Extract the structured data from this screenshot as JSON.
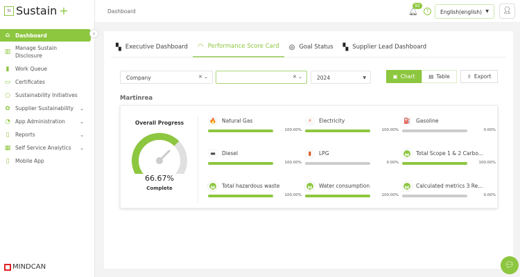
{
  "brand": {
    "name": "Sustain",
    "plus": "+",
    "box": "St",
    "footer": "MINDCAN"
  },
  "sidebar": {
    "items": [
      {
        "label": "Dashboard",
        "icon": "home-icon",
        "active": true
      },
      {
        "label": "Manage Sustain Disclosure",
        "icon": "chart-icon"
      },
      {
        "label": "Work Queue",
        "icon": "bars-icon"
      },
      {
        "label": "Certificates",
        "icon": "certificate-icon"
      },
      {
        "label": "Sustainability Initiatives",
        "icon": "bulb-icon"
      },
      {
        "label": "Supplier Sustainability",
        "icon": "network-icon",
        "expandable": true
      },
      {
        "label": "App Administration",
        "icon": "admin-icon",
        "expandable": true
      },
      {
        "label": "Reports",
        "icon": "report-icon",
        "expandable": true
      },
      {
        "label": "Self Service Analytics",
        "icon": "analytics-icon",
        "expandable": true
      },
      {
        "label": "Mobile App",
        "icon": "mobile-icon"
      }
    ]
  },
  "header": {
    "breadcrumb": "Dashboard",
    "notifications": "92",
    "language": "English(english)"
  },
  "tabs": [
    {
      "label": "Executive Dashboard",
      "icon": "grid-icon"
    },
    {
      "label": "Performance Score Card",
      "icon": "gauge-icon",
      "active": true
    },
    {
      "label": "Goal Status",
      "icon": "target-icon"
    },
    {
      "label": "Supplier Lead Dashboard",
      "icon": "grid-icon"
    }
  ],
  "filters": {
    "company": "Company",
    "second": "",
    "year": "2024"
  },
  "actions": {
    "chart": "Chart",
    "table": "Table",
    "export": "Export"
  },
  "section": "Martinrea",
  "overall": {
    "title": "Overall Progress",
    "value": "66.67%",
    "percent": 66.67,
    "label": "Complete"
  },
  "metrics": [
    {
      "label": "Natural Gas",
      "pct": "100.00%",
      "value": 100,
      "icon": "flame-icon",
      "glyph": "🔥"
    },
    {
      "label": "Electricity",
      "pct": "100.00%",
      "value": 100,
      "icon": "lightning-icon",
      "glyph": "⚡"
    },
    {
      "label": "Gasoline",
      "pct": "0.00%",
      "value": 0,
      "icon": "fuel-icon",
      "glyph": "⛽"
    },
    {
      "label": "Diesel",
      "pct": "100.00%",
      "value": 100,
      "icon": "diesel-icon",
      "glyph": "▬"
    },
    {
      "label": "LPG",
      "pct": "0.00%",
      "value": 0,
      "icon": "cylinder-icon",
      "glyph": "▮"
    },
    {
      "label": "Total Scope 1 & 2 Carbo...",
      "pct": "100.00%",
      "value": 100,
      "icon": "m-icon",
      "glyph": "M"
    },
    {
      "label": "Total hazardous waste",
      "pct": "100.00%",
      "value": 100,
      "icon": "m-icon",
      "glyph": "M"
    },
    {
      "label": "Water consumption",
      "pct": "100.00%",
      "value": 100,
      "icon": "m-icon",
      "glyph": "M"
    },
    {
      "label": "Calculated metrics 3 Re...",
      "pct": "0.00%",
      "value": 0,
      "icon": "m-icon",
      "glyph": "M"
    }
  ],
  "colors": {
    "accent": "#8dc63f",
    "track": "#cccccc"
  }
}
